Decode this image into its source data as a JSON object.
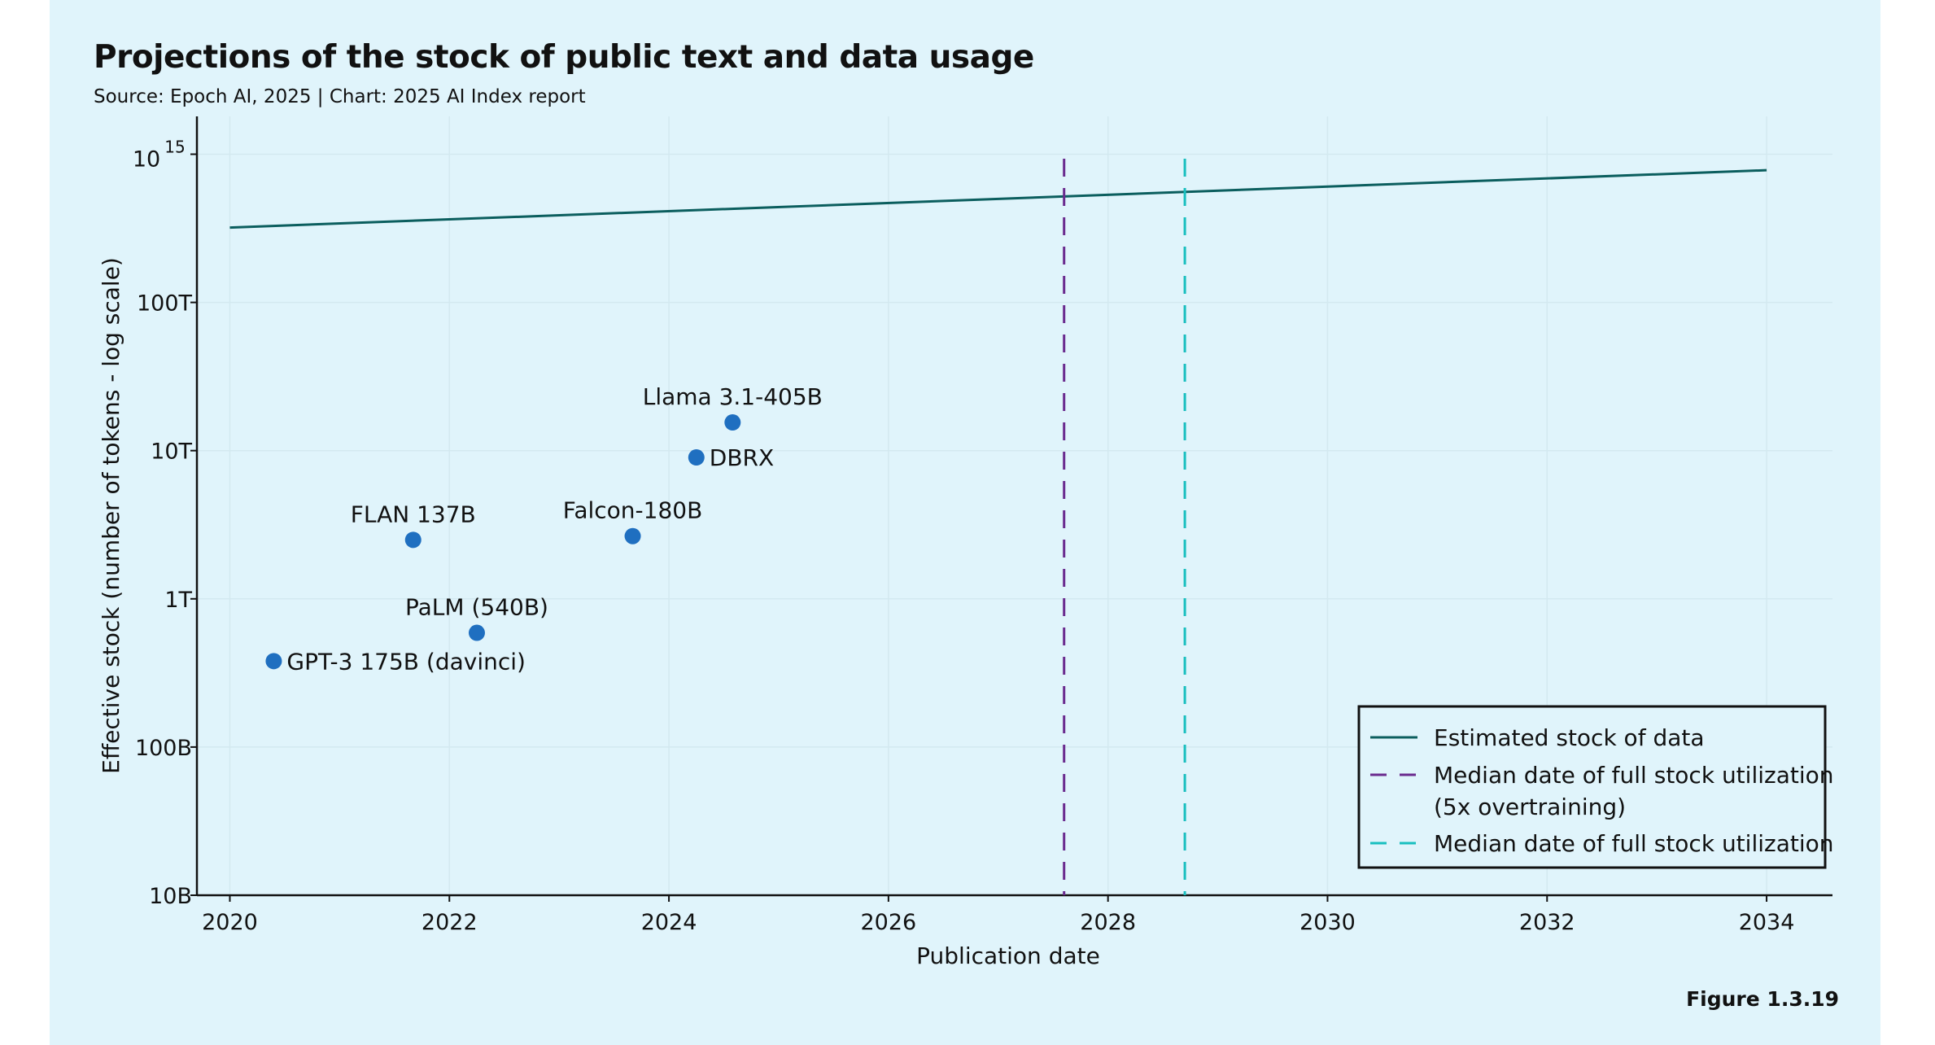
{
  "title": "Projections of the stock of public text and data usage",
  "subtitle": "Source: Epoch AI, 2025 | Chart: 2025 AI Index report",
  "figure_label": "Figure 1.3.19",
  "colors": {
    "background": "#e0f4fb",
    "stock_line": "#0b5e5e",
    "overtraining_line": "#6a2a8e",
    "utilization_line": "#19bfbf",
    "points": "#1f6fc0"
  },
  "chart_data": {
    "type": "scatter",
    "xlabel": "Publication date",
    "ylabel": "Effective stock (number of tokens - log scale)",
    "x_scale": "linear",
    "y_scale": "log",
    "xlim": [
      2019.7,
      2034.6
    ],
    "ylim": [
      10000000000,
      1800000000000000
    ],
    "grid": true,
    "x_ticks": [
      {
        "value": 2020,
        "label": "2020"
      },
      {
        "value": 2022,
        "label": "2022"
      },
      {
        "value": 2024,
        "label": "2024"
      },
      {
        "value": 2026,
        "label": "2026"
      },
      {
        "value": 2028,
        "label": "2028"
      },
      {
        "value": 2030,
        "label": "2030"
      },
      {
        "value": 2032,
        "label": "2032"
      },
      {
        "value": 2034,
        "label": "2034"
      }
    ],
    "y_ticks": [
      {
        "value": 10000000000,
        "label": "10B"
      },
      {
        "value": 100000000000,
        "label": "100B"
      },
      {
        "value": 1000000000000,
        "label": "1T"
      },
      {
        "value": 10000000000000,
        "label": "10T"
      },
      {
        "value": 100000000000000,
        "label": "100T"
      },
      {
        "value": 1000000000000000,
        "label_base": "10",
        "label_exp": "15"
      }
    ],
    "series": [
      {
        "name": "Estimated stock of data",
        "kind": "line",
        "points": [
          [
            2020.0,
            320000000000000
          ],
          [
            2034.0,
            780000000000000
          ]
        ]
      }
    ],
    "vertical_lines": [
      {
        "name": "Median date of full stock utilization",
        "name_line2": "(5x overtraining)",
        "x": 2027.6,
        "kind": "overtraining"
      },
      {
        "name": "Median date of full stock utilization",
        "x": 2028.7,
        "kind": "utilization"
      }
    ],
    "models": [
      {
        "label": "GPT-3 175B (davinci)",
        "x": 2020.4,
        "y": 380000000000,
        "label_pos": "right"
      },
      {
        "label": "FLAN 137B",
        "x": 2021.67,
        "y": 2500000000000,
        "label_pos": "above"
      },
      {
        "label": "PaLM (540B)",
        "x": 2022.25,
        "y": 590000000000,
        "label_pos": "above"
      },
      {
        "label": "Falcon-180B",
        "x": 2023.67,
        "y": 2650000000000,
        "label_pos": "above"
      },
      {
        "label": "DBRX",
        "x": 2024.25,
        "y": 9000000000000,
        "label_pos": "right"
      },
      {
        "label": "Llama 3.1-405B",
        "x": 2024.58,
        "y": 15500000000000,
        "label_pos": "above"
      }
    ],
    "legend": {
      "placement": "bottom-right",
      "entries": [
        {
          "label": "Estimated stock of data",
          "style": "solid",
          "color_key": "stock_line"
        },
        {
          "label": "Median date of full stock utilization",
          "label_line2": "(5x overtraining)",
          "style": "dashed",
          "color_key": "overtraining_line"
        },
        {
          "label": "Median date of full stock utilization",
          "style": "dashed",
          "color_key": "utilization_line"
        }
      ]
    }
  }
}
